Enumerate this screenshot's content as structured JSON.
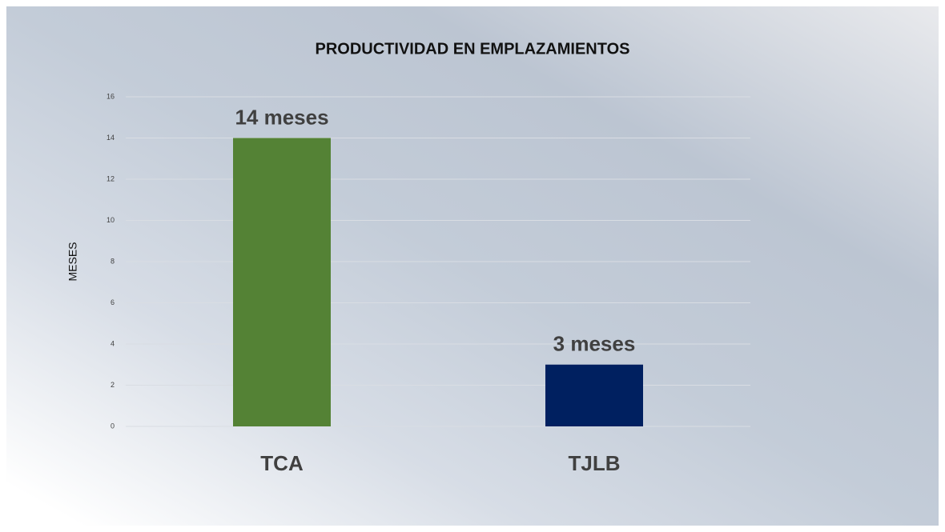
{
  "chart_data": {
    "type": "bar",
    "title": "PRODUCTIVIDAD EN EMPLAZAMIENTOS",
    "y_label": "MESES",
    "categories": [
      "TCA",
      "TJLB"
    ],
    "values": [
      14,
      3
    ],
    "value_labels": [
      "14 meses",
      "3 meses"
    ],
    "colors": [
      "#548235",
      "#002060"
    ],
    "ylim": [
      0,
      16
    ],
    "yticks": [
      0,
      2,
      4,
      6,
      8,
      10,
      12,
      14,
      16
    ],
    "grid": true
  }
}
